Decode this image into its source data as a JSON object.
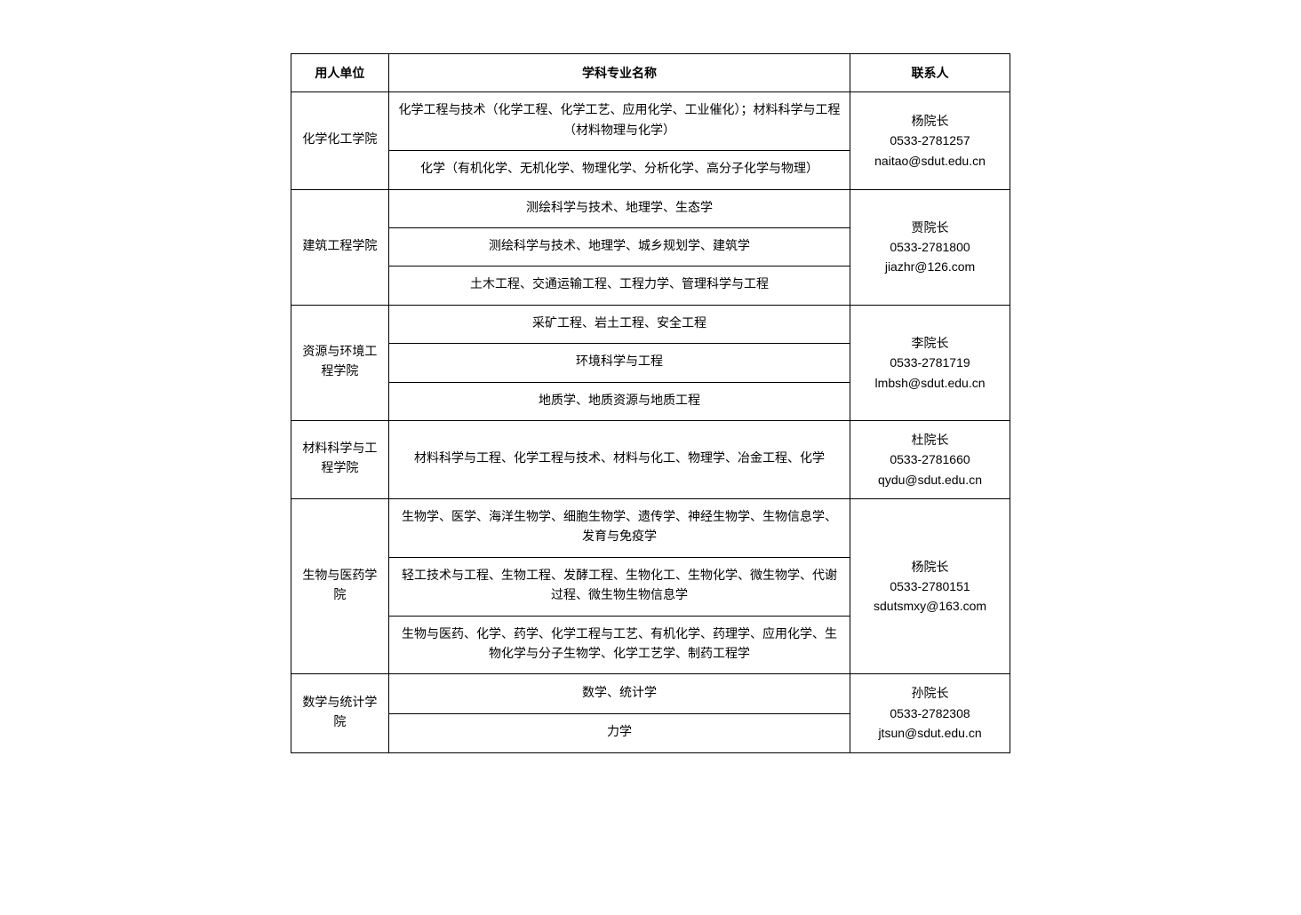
{
  "headers": {
    "dept": "用人单位",
    "major": "学科专业名称",
    "contact": "联系人"
  },
  "rows": [
    {
      "dept": "化学化工学院",
      "majors": [
        "化学工程与技术（化学工程、化学工艺、应用化学、工业催化）；材料科学与工程（材料物理与化学）",
        "化学（有机化学、无机化学、物理化学、分析化学、高分子化学与物理）"
      ],
      "contact_name": "杨院长",
      "contact_phone": "0533-2781257",
      "contact_email": "naitao@sdut.edu.cn"
    },
    {
      "dept": "建筑工程学院",
      "majors": [
        "测绘科学与技术、地理学、生态学",
        "测绘科学与技术、地理学、城乡规划学、建筑学",
        "土木工程、交通运输工程、工程力学、管理科学与工程"
      ],
      "contact_name": "贾院长",
      "contact_phone": "0533-2781800",
      "contact_email": "jiazhr@126.com"
    },
    {
      "dept": "资源与环境工程学院",
      "majors": [
        "采矿工程、岩土工程、安全工程",
        "环境科学与工程",
        "地质学、地质资源与地质工程"
      ],
      "contact_name": "李院长",
      "contact_phone": "0533-2781719",
      "contact_email": "lmbsh@sdut.edu.cn"
    },
    {
      "dept": "材料科学与工程学院",
      "majors": [
        "材料科学与工程、化学工程与技术、材料与化工、物理学、冶金工程、化学"
      ],
      "contact_name": "杜院长",
      "contact_phone": "0533-2781660",
      "contact_email": "qydu@sdut.edu.cn"
    },
    {
      "dept": "生物与医药学院",
      "majors": [
        "生物学、医学、海洋生物学、细胞生物学、遗传学、神经生物学、生物信息学、发育与免疫学",
        "轻工技术与工程、生物工程、发酵工程、生物化工、生物化学、微生物学、代谢过程、微生物生物信息学",
        "生物与医药、化学、药学、化学工程与工艺、有机化学、药理学、应用化学、生物化学与分子生物学、化学工艺学、制药工程学"
      ],
      "contact_name": "杨院长",
      "contact_phone": "0533-2780151",
      "contact_email": "sdutsmxy@163.com"
    },
    {
      "dept": "数学与统计学院",
      "majors": [
        "数学、统计学",
        "力学"
      ],
      "contact_name": "孙院长",
      "contact_phone": "0533-2782308",
      "contact_email": "jtsun@sdut.edu.cn"
    }
  ]
}
